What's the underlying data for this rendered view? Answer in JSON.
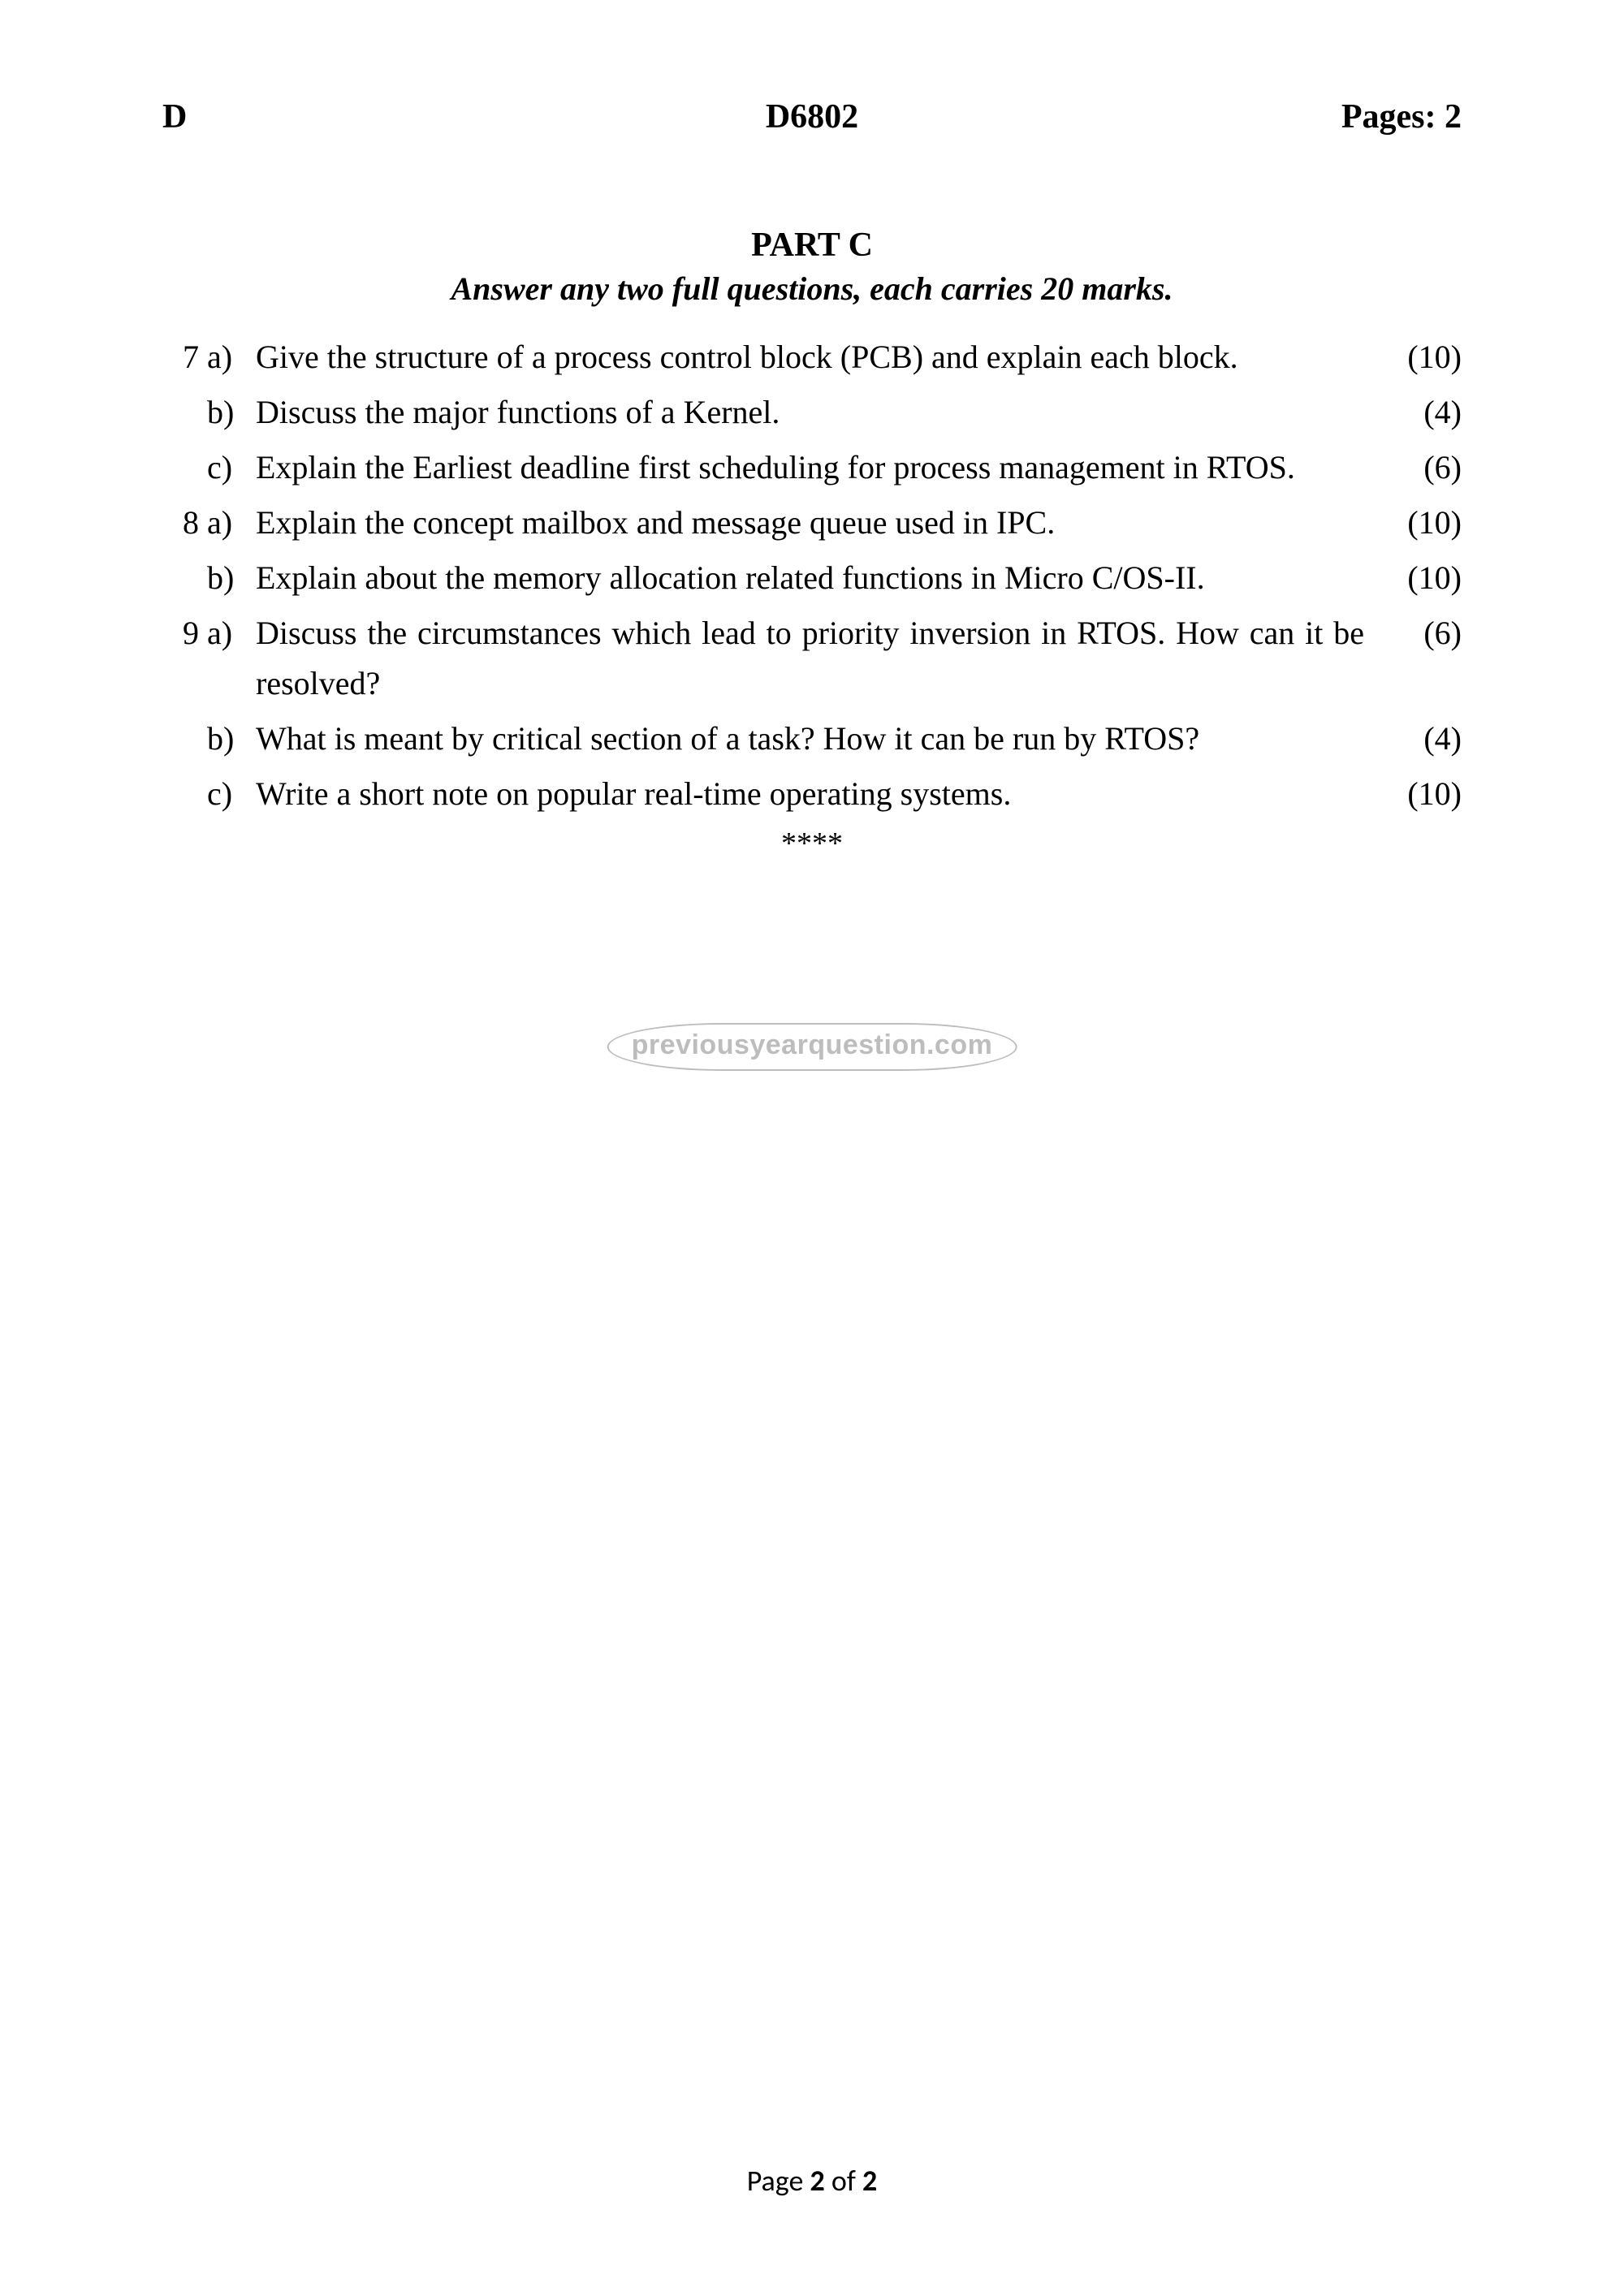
{
  "header": {
    "left": "D",
    "center": "D6802",
    "right": "Pages: 2"
  },
  "part": {
    "title": "PART C",
    "subtitle": "Answer any two full questions, each carries 20 marks."
  },
  "questions": [
    {
      "num": "7",
      "sub": "a)",
      "text": "Give the structure of a process control block (PCB) and explain each block.",
      "marks": "(10)"
    },
    {
      "num": "",
      "sub": "b)",
      "text": "Discuss the major functions of a Kernel.",
      "marks": "(4)"
    },
    {
      "num": "",
      "sub": "c)",
      "text": "Explain the Earliest deadline first scheduling for process management in RTOS.",
      "marks": "(6)"
    },
    {
      "num": "8",
      "sub": "a)",
      "text": "Explain the concept mailbox and message queue used in IPC.",
      "marks": "(10)"
    },
    {
      "num": "",
      "sub": "b)",
      "text": "Explain about the memory allocation related functions in Micro C/OS-II.",
      "marks": "(10)"
    },
    {
      "num": "9",
      "sub": "a)",
      "text": "Discuss the circumstances which lead to priority inversion in RTOS. How can it be resolved?",
      "marks": "(6)"
    },
    {
      "num": "",
      "sub": "b)",
      "text": "What is meant by critical section of a task? How it can be run by RTOS?",
      "marks": "(4)"
    },
    {
      "num": "",
      "sub": "c)",
      "text": "Write a short note on popular real-time operating systems.",
      "marks": "(10)"
    }
  ],
  "endmark": "****",
  "watermark": "previousyearquestion.com",
  "footer": {
    "prefix": "Page ",
    "current": "2",
    "sep": " of ",
    "total": "2"
  },
  "style": {
    "page_bg": "#ffffff",
    "text_color": "#000000",
    "watermark_color": "#bdbdbd",
    "body_font": "Times New Roman",
    "footer_font": "Calibri"
  }
}
